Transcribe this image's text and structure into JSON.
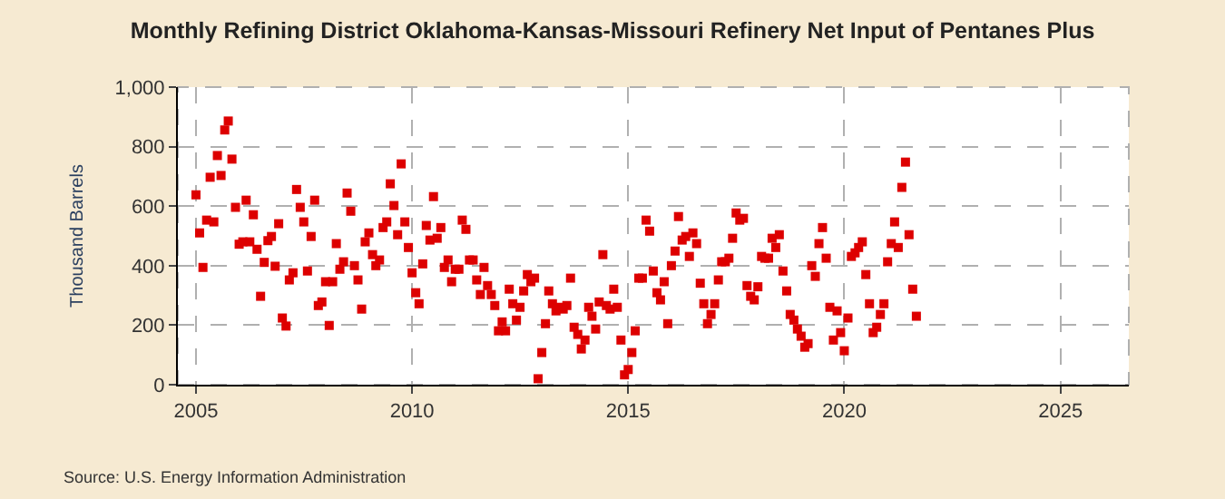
{
  "chart_data": {
    "type": "scatter",
    "title": "Monthly Refining District Oklahoma-Kansas-Missouri Refinery Net Input of Pentanes Plus",
    "ylabel": "Thousand Barrels",
    "annotations": [
      "Source: U.S. Energy Information Administration"
    ],
    "x": [
      "2005-01",
      "2005-02",
      "2005-03",
      "2005-04",
      "2005-05",
      "2005-06",
      "2005-07",
      "2005-08",
      "2005-09",
      "2005-10",
      "2005-11",
      "2005-12",
      "2006-01",
      "2006-02",
      "2006-03",
      "2006-04",
      "2006-05",
      "2006-06",
      "2006-07",
      "2006-08",
      "2006-09",
      "2006-10",
      "2006-11",
      "2006-12",
      "2007-01",
      "2007-02",
      "2007-03",
      "2007-04",
      "2007-05",
      "2007-06",
      "2007-07",
      "2007-08",
      "2007-09",
      "2007-10",
      "2007-11",
      "2007-12",
      "2008-01",
      "2008-02",
      "2008-03",
      "2008-04",
      "2008-05",
      "2008-06",
      "2008-07",
      "2008-08",
      "2008-09",
      "2008-10",
      "2008-11",
      "2008-12",
      "2009-01",
      "2009-02",
      "2009-03",
      "2009-04",
      "2009-05",
      "2009-06",
      "2009-07",
      "2009-08",
      "2009-09",
      "2009-10",
      "2009-11",
      "2009-12",
      "2010-01",
      "2010-02",
      "2010-03",
      "2010-04",
      "2010-05",
      "2010-06",
      "2010-07",
      "2010-08",
      "2010-09",
      "2010-10",
      "2010-11",
      "2010-12",
      "2011-01",
      "2011-02",
      "2011-03",
      "2011-04",
      "2011-05",
      "2011-06",
      "2011-07",
      "2011-08",
      "2011-09",
      "2011-10",
      "2011-11",
      "2011-12",
      "2012-01",
      "2012-02",
      "2012-03",
      "2012-04",
      "2012-05",
      "2012-06",
      "2012-07",
      "2012-08",
      "2012-09",
      "2012-10",
      "2012-11",
      "2012-12",
      "2013-01",
      "2013-02",
      "2013-03",
      "2013-04",
      "2013-05",
      "2013-06",
      "2013-07",
      "2013-08",
      "2013-09",
      "2013-10",
      "2013-11",
      "2013-12",
      "2014-01",
      "2014-02",
      "2014-03",
      "2014-04",
      "2014-05",
      "2014-06",
      "2014-07",
      "2014-08",
      "2014-09",
      "2014-10",
      "2014-11",
      "2014-12",
      "2015-01",
      "2015-02",
      "2015-03",
      "2015-04",
      "2015-05",
      "2015-06",
      "2015-07",
      "2015-08",
      "2015-09",
      "2015-10",
      "2015-11",
      "2015-12",
      "2016-01",
      "2016-02",
      "2016-03",
      "2016-04",
      "2016-05",
      "2016-06",
      "2016-07",
      "2016-08",
      "2016-09",
      "2016-10",
      "2016-11",
      "2016-12",
      "2017-01",
      "2017-02",
      "2017-03",
      "2017-04",
      "2017-05",
      "2017-06",
      "2017-07",
      "2017-08",
      "2017-09",
      "2017-10",
      "2017-11",
      "2017-12",
      "2018-01",
      "2018-02",
      "2018-03",
      "2018-04",
      "2018-05",
      "2018-06",
      "2018-07",
      "2018-08",
      "2018-09",
      "2018-10",
      "2018-11",
      "2018-12",
      "2019-01",
      "2019-02",
      "2019-03",
      "2019-04",
      "2019-05",
      "2019-06",
      "2019-07",
      "2019-08",
      "2019-09",
      "2019-10",
      "2019-11",
      "2019-12",
      "2020-01",
      "2020-02",
      "2020-03",
      "2020-04",
      "2020-05",
      "2020-06",
      "2020-07",
      "2020-08",
      "2020-09",
      "2020-10",
      "2020-11",
      "2020-12",
      "2021-01",
      "2021-02",
      "2021-03",
      "2021-04",
      "2021-05",
      "2021-06",
      "2021-07",
      "2021-08",
      "2021-09"
    ],
    "series": [
      {
        "color": "#dd0000",
        "values": [
          638,
          510,
          394,
          553,
          697,
          547,
          770,
          703,
          856,
          886,
          758,
          596,
          472,
          480,
          620,
          480,
          571,
          455,
          297,
          411,
          484,
          498,
          398,
          541,
          224,
          197,
          352,
          376,
          656,
          596,
          547,
          382,
          498,
          620,
          266,
          278,
          346,
          199,
          346,
          474,
          388,
          413,
          644,
          583,
          400,
          352,
          254,
          480,
          510,
          437,
          400,
          419,
          528,
          547,
          675,
          602,
          504,
          742,
          547,
          461,
          376,
          309,
          272,
          406,
          535,
          486,
          632,
          492,
          528,
          394,
          419,
          346,
          388,
          388,
          553,
          522,
          419,
          419,
          352,
          303,
          394,
          333,
          303,
          266,
          181,
          211,
          181,
          321,
          272,
          217,
          260,
          315,
          370,
          346,
          358,
          20,
          108,
          205,
          315,
          272,
          248,
          260,
          254,
          266,
          358,
          193,
          169,
          120,
          150,
          260,
          230,
          187,
          278,
          437,
          266,
          254,
          321,
          260,
          150,
          33,
          51,
          108,
          181,
          358,
          358,
          553,
          516,
          382,
          309,
          285,
          346,
          205,
          400,
          449,
          565,
          486,
          498,
          431,
          510,
          474,
          341,
          272,
          205,
          236,
          272,
          352,
          413,
          413,
          425,
          492,
          577,
          553,
          559,
          333,
          297,
          285,
          329,
          431,
          425,
          425,
          492,
          461,
          504,
          382,
          315,
          236,
          217,
          187,
          163,
          126,
          138,
          400,
          364,
          474,
          528,
          425,
          260,
          150,
          248,
          175,
          114,
          224,
          431,
          443,
          461,
          480,
          370,
          272,
          175,
          193,
          236,
          272,
          413,
          474,
          547,
          461,
          663,
          748,
          504,
          321,
          230
        ]
      }
    ],
    "xlim": [
      "2004-08",
      "2026-08"
    ],
    "xticks": [
      "2005",
      "2010",
      "2015",
      "2020",
      "2025"
    ],
    "ylim": [
      0,
      1000
    ],
    "yticks": [
      0,
      200,
      400,
      600,
      800,
      {
        "value": 1000,
        "label": "1,000"
      }
    ],
    "grid": true,
    "marker": "square"
  }
}
